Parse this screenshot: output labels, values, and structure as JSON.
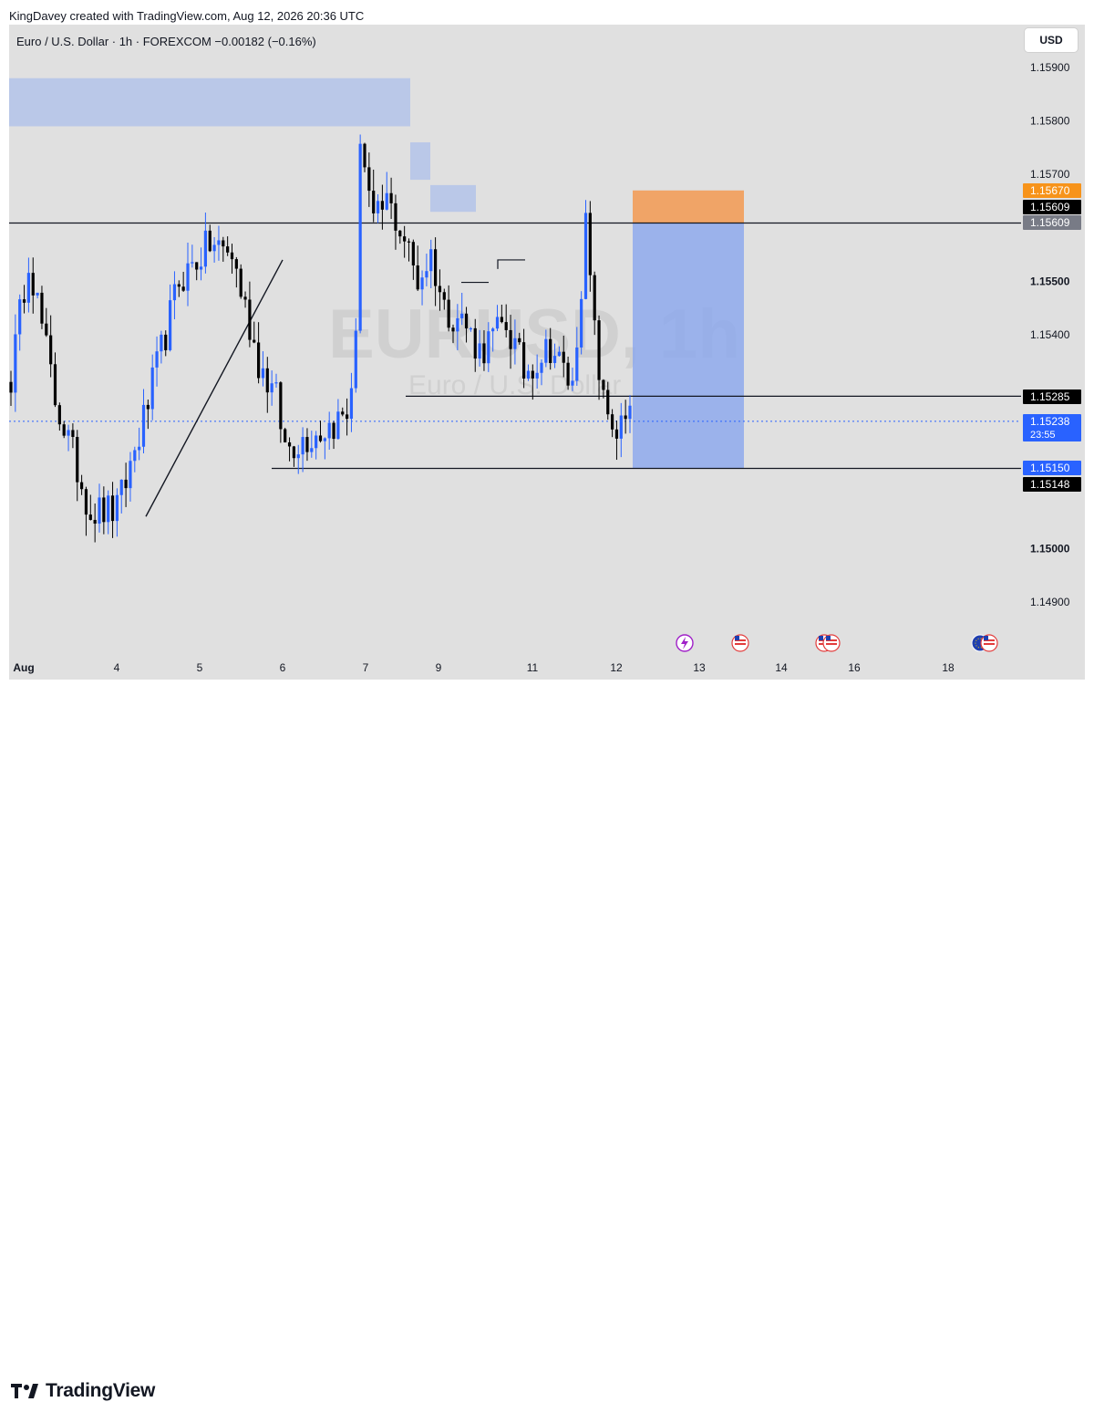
{
  "header": {
    "credit": "KingDavey created with TradingView.com, Aug 12, 2026 20:36 UTC",
    "symbol_line": "Euro / U.S. Dollar · 1h · FOREXCOM  −0.00182 (−0.16%)",
    "currency_button": "USD"
  },
  "watermark": {
    "symbol": "EURUSD, 1h",
    "name": "Euro / U.S. Dollar"
  },
  "footer": {
    "brand": "TradingView"
  },
  "colors": {
    "background": "#e0e0e0",
    "up_candle": "#2962ff",
    "down_candle": "#000000",
    "supply_zone": "#b7c6e8",
    "stop_zone": "#f0a060",
    "target_zone": "#8ea9ec",
    "price_label_blue": "#2962ff",
    "price_label_black": "#000000",
    "price_label_orange": "#f7931a",
    "price_label_gray": "#787b86"
  },
  "chart_data": {
    "type": "candlestick",
    "title": "Euro / U.S. Dollar · 1h · FOREXCOM",
    "ylim": [
      1.1475,
      1.1597
    ],
    "price_ticks": [
      "1.15900",
      "1.15800",
      "1.15700",
      "1.15500",
      "1.15400",
      "1.15000",
      "1.14900"
    ],
    "x_ticks": [
      "Aug",
      "4",
      "5",
      "6",
      "7",
      "9",
      "11",
      "12",
      "13",
      "14",
      "16",
      "18"
    ],
    "price_labels": [
      {
        "value": 1.1567,
        "text": "1.15670",
        "color": "orange"
      },
      {
        "value": 1.15609,
        "text": "1.15609",
        "color": "black"
      },
      {
        "value": 1.15609,
        "text": "1.15609",
        "color": "gray"
      },
      {
        "value": 1.15285,
        "text": "1.15285",
        "color": "black"
      },
      {
        "value": 1.15238,
        "text": "1.15238",
        "countdown": "23:55",
        "color": "blue"
      },
      {
        "value": 1.1515,
        "text": "1.15150",
        "color": "blue"
      },
      {
        "value": 1.15148,
        "text": "1.15148",
        "color": "black"
      }
    ],
    "horizontal_lines": [
      {
        "name": "resistance",
        "value": 1.15609
      },
      {
        "name": "support-low",
        "value": 1.1515
      },
      {
        "name": "mid-level",
        "value": 1.15285
      }
    ],
    "zones": [
      {
        "name": "supply-zone-top",
        "low": 1.1579,
        "high": 1.1588
      },
      {
        "name": "supply-zone-small-1",
        "low": 1.1569,
        "high": 1.1576
      },
      {
        "name": "supply-zone-small-2",
        "low": 1.1563,
        "high": 1.1568
      },
      {
        "name": "stop-loss-zone",
        "low": 1.15609,
        "high": 1.1567
      },
      {
        "name": "take-profit-zone",
        "low": 1.1515,
        "high": 1.15609
      }
    ],
    "path": [
      [
        0,
        1.1532
      ],
      [
        4,
        1.1555
      ],
      [
        10,
        1.1528
      ],
      [
        18,
        1.1507
      ],
      [
        24,
        1.1507
      ],
      [
        30,
        1.1524
      ],
      [
        38,
        1.155
      ],
      [
        45,
        1.1557
      ],
      [
        50,
        1.1555
      ],
      [
        56,
        1.1535
      ],
      [
        60,
        1.1528
      ],
      [
        62,
        1.1519
      ],
      [
        70,
        1.1522
      ],
      [
        76,
        1.1525
      ],
      [
        78,
        1.1538
      ],
      [
        79,
        1.1578
      ],
      [
        82,
        1.156
      ],
      [
        85,
        1.1565
      ],
      [
        89,
        1.1558
      ],
      [
        92,
        1.155
      ],
      [
        95,
        1.1555
      ],
      [
        98,
        1.1545
      ],
      [
        102,
        1.1543
      ],
      [
        106,
        1.1537
      ],
      [
        112,
        1.1542
      ],
      [
        116,
        1.1533
      ],
      [
        122,
        1.1538
      ],
      [
        127,
        1.153
      ],
      [
        130,
        1.156
      ],
      [
        132,
        1.154
      ],
      [
        134,
        1.1527
      ],
      [
        137,
        1.1522
      ],
      [
        140,
        1.1524
      ]
    ]
  }
}
